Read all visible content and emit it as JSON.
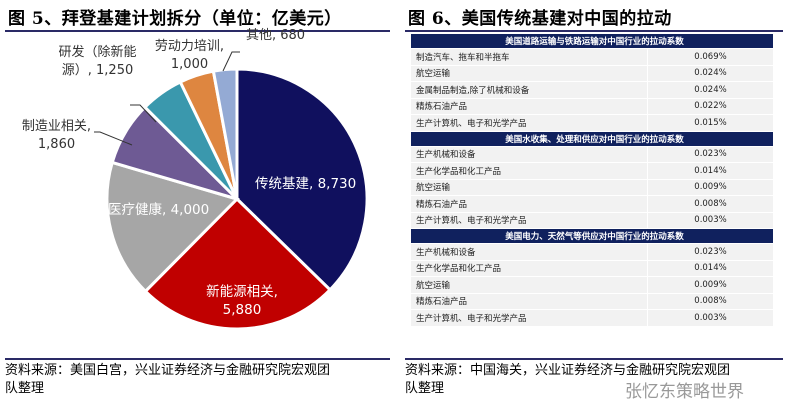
{
  "left": {
    "title": "图 5、拜登基建计划拆分（单位：亿美元）",
    "source_line1": "资料来源：美国白宫，兴业证券经济与金融研究院宏观团",
    "source_line2": "队整理"
  },
  "right": {
    "title": "图 6、美国传统基建对中国的拉动",
    "source_line1": "资料来源：中国海关，兴业证券经济与金融研究院宏观团",
    "source_line2": "队整理",
    "watermark": "张忆东策略世界",
    "sections": [
      {
        "header": "美国道路运输与铁路运输对中国行业的拉动系数",
        "rows": [
          [
            "制造汽车、拖车和半拖车",
            "0.069%"
          ],
          [
            "航空运输",
            "0.024%"
          ],
          [
            "金属制品制造,除了机械和设备",
            "0.024%"
          ],
          [
            "精炼石油产品",
            "0.022%"
          ],
          [
            "生产计算机、电子和光学产品",
            "0.015%"
          ]
        ]
      },
      {
        "header": "美国水收集、处理和供应对中国行业的拉动系数",
        "rows": [
          [
            "生产机械和设备",
            "0.023%"
          ],
          [
            "生产化学品和化工产品",
            "0.014%"
          ],
          [
            "航空运输",
            "0.009%"
          ],
          [
            "精炼石油产品",
            "0.008%"
          ],
          [
            "生产计算机、电子和光学产品",
            "0.003%"
          ]
        ]
      },
      {
        "header": "美国电力、天然气等供应对中国行业的拉动系数",
        "rows": [
          [
            "生产机械和设备",
            "0.023%"
          ],
          [
            "生产化学品和化工产品",
            "0.014%"
          ],
          [
            "航空运输",
            "0.009%"
          ],
          [
            "精炼石油产品",
            "0.008%"
          ],
          [
            "生产计算机、电子和光学产品",
            "0.003%"
          ]
        ]
      }
    ]
  },
  "chart_data": {
    "type": "pie",
    "title": "拜登基建计划拆分（单位：亿美元）",
    "start": "12 o'clock, clockwise",
    "slices": [
      {
        "label": "传统基建",
        "value": 8730,
        "text": "传统基建, 8,730",
        "color": "#10105e"
      },
      {
        "label": "新能源相关",
        "value": 5880,
        "text1": "新能源相关,",
        "text2": "5,880",
        "color": "#c00000"
      },
      {
        "label": "医疗健康",
        "value": 4000,
        "text": "医疗健康, 4,000",
        "color": "#a6a6a6"
      },
      {
        "label": "制造业相关",
        "value": 1860,
        "text1": "制造业相关,",
        "text2": "1,860",
        "color": "#6e5a94"
      },
      {
        "label": "研发（除新能源）",
        "value": 1250,
        "text1": "研发（除新能",
        "text2": "源）, 1,250",
        "color": "#3a98ad"
      },
      {
        "label": "劳动力培训",
        "value": 1000,
        "text1": "劳动力培训,",
        "text2": "1,000",
        "color": "#de8640"
      },
      {
        "label": "其他",
        "value": 680,
        "text": "其他, 680",
        "color": "#94aad4"
      }
    ]
  }
}
